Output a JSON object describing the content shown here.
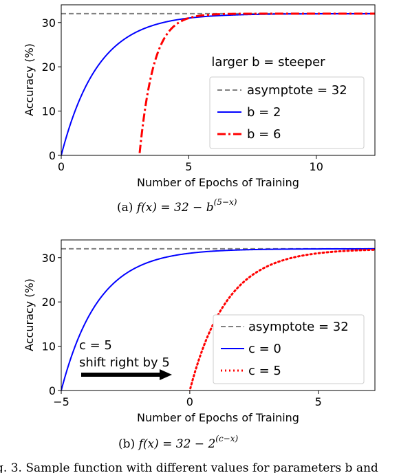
{
  "chart_data": [
    {
      "type": "line",
      "ylabel": "Accuracy (%)",
      "xlabel": "Number of Epochs of Training",
      "xlim": [
        0,
        12.3
      ],
      "ylim": [
        0,
        34
      ],
      "xticks": [
        "0",
        "5",
        "10"
      ],
      "xtick_values": [
        0,
        5,
        10
      ],
      "yticks": [
        "0",
        "10",
        "20",
        "30"
      ],
      "ytick_values": [
        0,
        10,
        20,
        30
      ],
      "annotation": "larger b = steeper",
      "caption_prefix": "(a) ",
      "caption_formula": "f(x) = 32 − b",
      "caption_exponent": "(5−x)",
      "legend_position": "lower-right",
      "series": [
        {
          "name": "asymptote = 32",
          "style": "dashed",
          "color": "#808080",
          "formula": "y = 32"
        },
        {
          "name": "b = 2",
          "style": "solid",
          "color": "#0000ff",
          "formula": "32 - 2^(5-x)"
        },
        {
          "name": "b = 6",
          "style": "dashdot",
          "color": "#ff0000",
          "formula": "32 - 6^(5-x)"
        }
      ]
    },
    {
      "type": "line",
      "ylabel": "Accuracy (%)",
      "xlabel": "Number of Epochs of Training",
      "xlim": [
        -5,
        7.2
      ],
      "ylim": [
        0,
        34
      ],
      "xticks": [
        "−5",
        "0",
        "5"
      ],
      "xtick_values": [
        -5,
        0,
        5
      ],
      "yticks": [
        "0",
        "10",
        "20",
        "30"
      ],
      "ytick_values": [
        0,
        10,
        20,
        30
      ],
      "annotation_line1": "c = 5",
      "annotation_line2": "shift right by 5",
      "caption_prefix": "(b) ",
      "caption_formula": "f(x) = 32 − 2",
      "caption_exponent": "(c−x)",
      "legend_position": "lower-right",
      "series": [
        {
          "name": "asymptote = 32",
          "style": "dashed",
          "color": "#808080",
          "formula": "y = 32"
        },
        {
          "name": "c = 0",
          "style": "solid",
          "color": "#0000ff",
          "formula": "32 - 2^(0-x)"
        },
        {
          "name": "c = 5",
          "style": "dotted",
          "color": "#ff0000",
          "formula": "32 - 2^(5-x)"
        }
      ]
    }
  ],
  "figure_caption": "g. 3.   Sample function with different values for parameters b and"
}
